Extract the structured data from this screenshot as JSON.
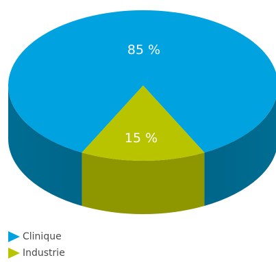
{
  "chart_data": {
    "type": "pie",
    "categories": [
      "Clinique",
      "Industrie"
    ],
    "values": [
      85,
      15
    ],
    "data_labels": [
      "85 %",
      "15 %"
    ],
    "colors": {
      "Clinique": {
        "top": "#00a3e0",
        "side": "#006d92",
        "side_dark": "#005f82"
      },
      "Industrie": {
        "top": "#b9c400",
        "side": "#8e9600",
        "side_dark": "#7d8400"
      }
    },
    "title": "",
    "legend_position": "bottom-left"
  }
}
